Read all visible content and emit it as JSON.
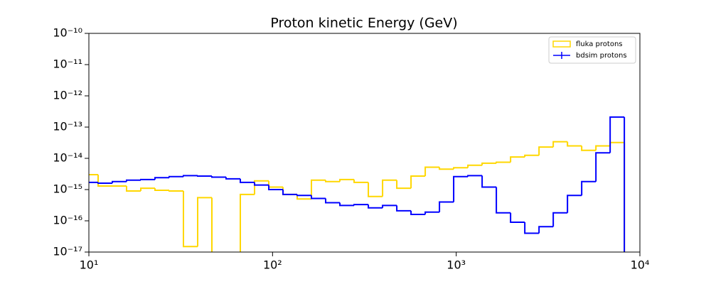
{
  "chart_data": {
    "type": "histogram",
    "title": "Proton kinetic Energy (GeV)",
    "xscale": "log",
    "yscale": "log",
    "xlim": [
      10,
      10000
    ],
    "ylim": [
      1e-17,
      1e-10
    ],
    "xticks": [
      {
        "value": 10,
        "label": "10¹"
      },
      {
        "value": 100,
        "label": "10²"
      },
      {
        "value": 1000,
        "label": "10³"
      },
      {
        "value": 10000,
        "label": "10⁴"
      }
    ],
    "yticks": [
      {
        "value": 1e-17,
        "label": "10⁻¹⁷"
      },
      {
        "value": 1e-16,
        "label": "10⁻¹⁶"
      },
      {
        "value": 1e-15,
        "label": "10⁻¹⁵"
      },
      {
        "value": 1e-14,
        "label": "10⁻¹⁴"
      },
      {
        "value": 1e-13,
        "label": "10⁻¹³"
      },
      {
        "value": 1e-12,
        "label": "10⁻¹²"
      },
      {
        "value": 1e-11,
        "label": "10⁻¹¹"
      },
      {
        "value": 1e-10,
        "label": "10⁻¹⁰"
      }
    ],
    "legend": "upper right",
    "bins": [
      9.4,
      11.23,
      13.42,
      16.04,
      19.17,
      22.91,
      27.38,
      32.72,
      39.11,
      46.74,
      55.86,
      66.76,
      79.8,
      95.4,
      114.0,
      136.2,
      162.8,
      194.6,
      232.6,
      278.0,
      332.3,
      397.2,
      474.7,
      567.4,
      678.1,
      810.4,
      968.5,
      1157.6,
      1383.6,
      1653.7,
      1976.5,
      2362.4,
      2823.6,
      3374.8,
      4033.6,
      4820.7,
      5761.6,
      6886,
      8228
    ],
    "series": [
      {
        "name": "fluka protons",
        "color": "#ffd700",
        "style": "step",
        "values": [
          3e-15,
          1.3e-15,
          1.3e-15,
          9e-16,
          1.1e-15,
          9.5e-16,
          9e-16,
          1.5e-17,
          5.5e-16,
          0,
          0,
          7e-16,
          1.9e-15,
          1.2e-15,
          7e-16,
          5e-16,
          2e-15,
          1.8e-15,
          2.1e-15,
          1.7e-15,
          6e-16,
          2e-15,
          1.1e-15,
          2.7e-15,
          5.2e-15,
          4.5e-15,
          5e-15,
          6e-15,
          7e-15,
          7.5e-15,
          1.1e-14,
          1.25e-14,
          2.3e-14,
          3.4e-14,
          2.5e-14,
          1.8e-14,
          2.5e-14,
          3.2e-14
        ]
      },
      {
        "name": "bdsim protons",
        "color": "#0000ff",
        "style": "errorbar-step",
        "values": [
          1.7e-15,
          1.6e-15,
          1.8e-15,
          2e-15,
          2.1e-15,
          2.4e-15,
          2.6e-15,
          2.8e-15,
          2.7e-15,
          2.5e-15,
          2.2e-15,
          1.7e-15,
          1.4e-15,
          1e-15,
          7e-16,
          6.5e-16,
          5.2e-16,
          3.8e-16,
          3.1e-16,
          3.3e-16,
          2.6e-16,
          3.1e-16,
          2.1e-16,
          1.6e-16,
          1.9e-16,
          4e-16,
          2.6e-15,
          2.8e-15,
          1.2e-15,
          1.8e-16,
          9e-17,
          4e-17,
          6.5e-17,
          1.8e-16,
          6.5e-16,
          1.8e-15,
          1.5e-14,
          2.1e-13
        ]
      }
    ]
  }
}
